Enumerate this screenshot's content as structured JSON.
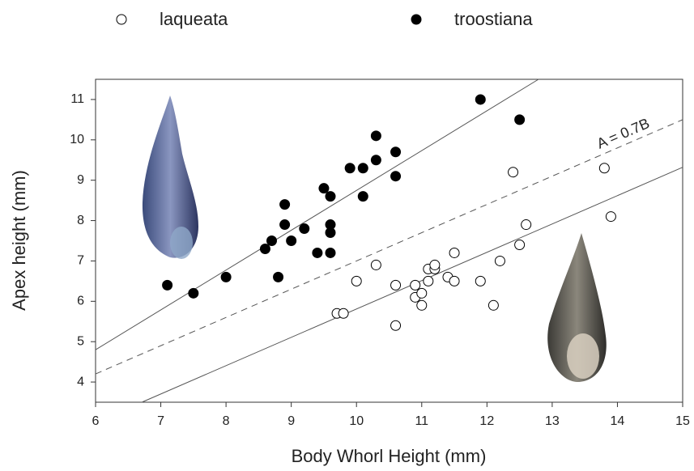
{
  "chart_data": {
    "type": "scatter",
    "xlabel": "Body Whorl Height (mm)",
    "ylabel": "Apex height (mm)",
    "xlim": [
      6,
      15
    ],
    "ylim": [
      3.5,
      11.5
    ],
    "xticks": [
      6,
      7,
      8,
      9,
      10,
      11,
      12,
      13,
      14,
      15
    ],
    "yticks": [
      4,
      5,
      6,
      7,
      8,
      9,
      10,
      11
    ],
    "series": [
      {
        "name": "laqueata",
        "color": "#000000",
        "filled": false,
        "x": [
          9.7,
          9.8,
          10.0,
          10.3,
          10.6,
          10.6,
          10.9,
          10.9,
          11.0,
          11.0,
          11.1,
          11.1,
          11.2,
          11.2,
          11.4,
          11.5,
          11.5,
          11.9,
          12.1,
          12.2,
          12.4,
          12.5,
          12.6,
          13.8,
          13.9
        ],
        "values": [
          5.7,
          5.7,
          6.5,
          6.9,
          6.4,
          5.4,
          6.4,
          6.1,
          6.2,
          5.9,
          6.5,
          6.8,
          6.8,
          6.9,
          6.6,
          7.2,
          6.5,
          6.5,
          5.9,
          7.0,
          9.2,
          7.4,
          7.9,
          9.3,
          8.1
        ]
      },
      {
        "name": "troostiana",
        "color": "#000000",
        "filled": true,
        "x": [
          7.1,
          7.5,
          8.0,
          8.6,
          8.7,
          8.8,
          8.9,
          8.9,
          9.0,
          9.2,
          9.4,
          9.5,
          9.6,
          9.6,
          9.6,
          9.6,
          9.9,
          10.1,
          10.1,
          10.3,
          10.3,
          10.6,
          10.6,
          11.9,
          12.5
        ],
        "values": [
          6.4,
          6.2,
          6.6,
          7.3,
          7.5,
          6.6,
          8.4,
          7.9,
          7.5,
          7.8,
          7.2,
          8.8,
          8.6,
          7.9,
          7.7,
          7.2,
          9.3,
          9.3,
          8.6,
          10.1,
          9.5,
          9.7,
          9.1,
          11.0,
          10.5
        ]
      }
    ],
    "lines": [
      {
        "x": [
          6,
          12.79
        ],
        "y": [
          4.8,
          11.5
        ],
        "dashed": false
      },
      {
        "x": [
          6,
          15
        ],
        "y": [
          4.2,
          10.5
        ],
        "dashed": true
      },
      {
        "x": [
          6.71,
          15
        ],
        "y": [
          3.5,
          9.32
        ],
        "dashed": false
      }
    ],
    "annotation": "A = 0.7B"
  }
}
